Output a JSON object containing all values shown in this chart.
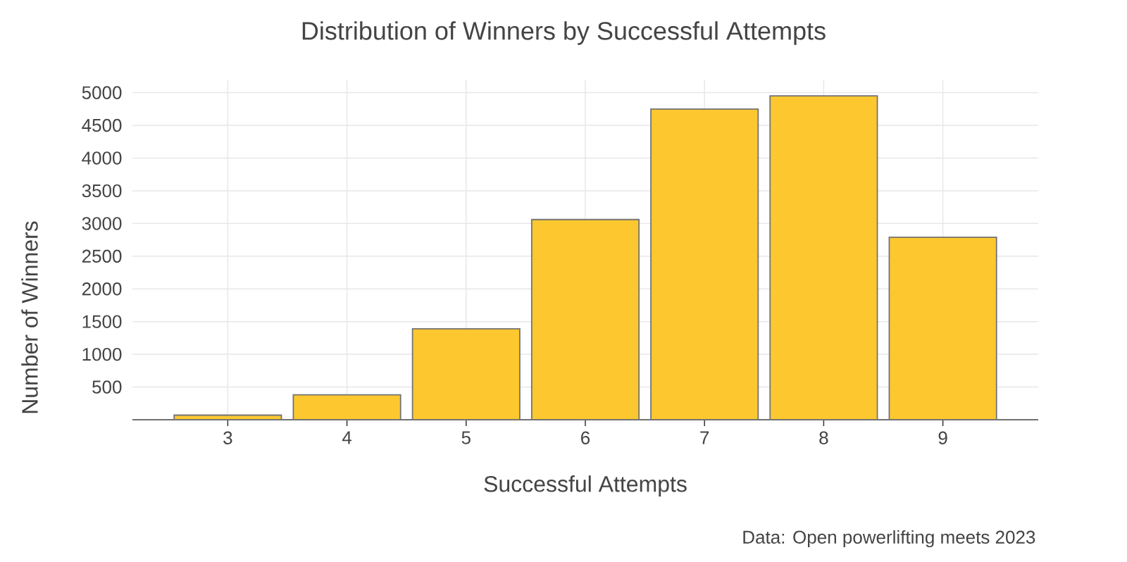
{
  "chart_data": {
    "type": "bar",
    "title": "Distribution of Winners by Successful Attempts",
    "xlabel": "Successful Attempts",
    "ylabel": "Number of Winners",
    "annotations": [
      "Data: Open powerlifting meets 2023"
    ],
    "x": [
      3,
      4,
      5,
      6,
      7,
      8,
      9
    ],
    "values": [
      70,
      380,
      1390,
      3060,
      4750,
      4950,
      2790
    ],
    "color": "#fdc82f",
    "xlim": [
      2.2,
      9.8
    ],
    "xticks": [
      3,
      4,
      5,
      6,
      7,
      8,
      9
    ],
    "ylim": [
      0,
      5200
    ],
    "yticks": [
      500,
      1000,
      1500,
      2000,
      2500,
      3000,
      3500,
      4000,
      4500,
      5000
    ],
    "grid": true
  }
}
